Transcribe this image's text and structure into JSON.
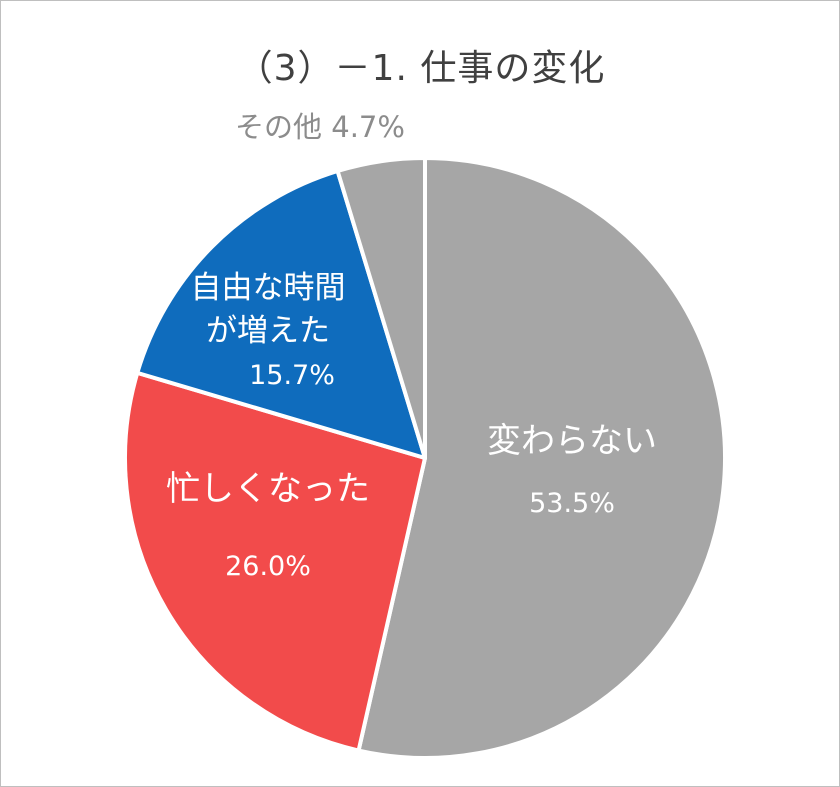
{
  "chart_data": {
    "type": "pie",
    "title": "（3）－1. 仕事の変化",
    "categories": [
      "変わらない",
      "忙しくなった",
      "自由な時間が増えた",
      "その他"
    ],
    "values": [
      53.5,
      26.0,
      15.7,
      4.7
    ],
    "value_labels": [
      "53.5%",
      "26.0%",
      "15.7%",
      "4.7%"
    ],
    "slice_labels": [
      {
        "lines": [
          "変わらない"
        ],
        "value": "53.5%"
      },
      {
        "lines": [
          "忙しくなった"
        ],
        "value": "26.0%"
      },
      {
        "lines": [
          "自由な時間",
          "が増えた"
        ],
        "value": "15.7%"
      },
      {
        "lines": [
          "その他"
        ],
        "value": "4.7%"
      }
    ],
    "colors": [
      "#a6a6a6",
      "#f24b4b",
      "#0f6cbd",
      "#a6a6a6"
    ],
    "start_angle_deg": 0,
    "direction": "clockwise",
    "legend": "none"
  }
}
